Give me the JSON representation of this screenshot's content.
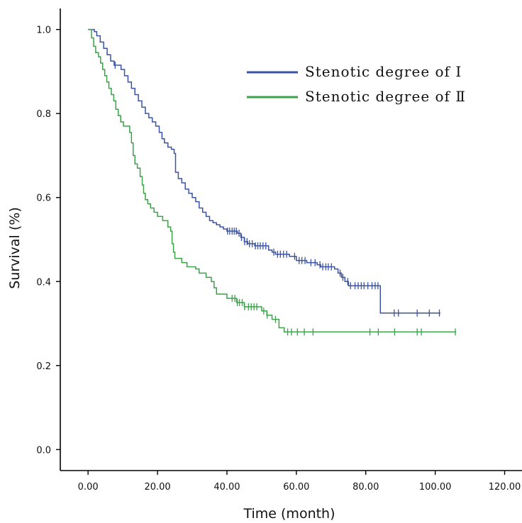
{
  "chart_data": {
    "type": "line",
    "subtype": "kaplan-meier-step",
    "title": "",
    "xlabel": "Time (month)",
    "ylabel": "Survival (%)",
    "xlim": [
      -8,
      125
    ],
    "ylim": [
      -0.05,
      1.05
    ],
    "xticks": [
      0,
      20,
      40,
      60,
      80,
      100,
      120
    ],
    "xtick_labels": [
      "0.00",
      "20.00",
      "40.00",
      "60.00",
      "80.00",
      "100.00",
      "120.00"
    ],
    "yticks": [
      0,
      0.2,
      0.4,
      0.6,
      0.8,
      1.0
    ],
    "ytick_labels": [
      "0.0",
      "0.2",
      "0.4",
      "0.6",
      "0.8",
      "1.0"
    ],
    "grid": false,
    "legend_position": "top-right",
    "series": [
      {
        "name": "Stenotic degree of Ⅰ",
        "color": "#3a53a4",
        "steps": [
          [
            0,
            1.0
          ],
          [
            1.8,
            0.995
          ],
          [
            2.5,
            0.985
          ],
          [
            3.5,
            0.97
          ],
          [
            4.5,
            0.955
          ],
          [
            5.5,
            0.94
          ],
          [
            6.5,
            0.925
          ],
          [
            7.5,
            0.915
          ],
          [
            9.5,
            0.905
          ],
          [
            10.5,
            0.89
          ],
          [
            11.5,
            0.875
          ],
          [
            12.5,
            0.86
          ],
          [
            13.5,
            0.845
          ],
          [
            14.5,
            0.83
          ],
          [
            15.5,
            0.815
          ],
          [
            16.5,
            0.8
          ],
          [
            17.5,
            0.79
          ],
          [
            18.5,
            0.78
          ],
          [
            19.5,
            0.77
          ],
          [
            20.5,
            0.755
          ],
          [
            21.3,
            0.74
          ],
          [
            22,
            0.73
          ],
          [
            23,
            0.72
          ],
          [
            24,
            0.715
          ],
          [
            24.8,
            0.705
          ],
          [
            25.2,
            0.66
          ],
          [
            26,
            0.645
          ],
          [
            27,
            0.635
          ],
          [
            28,
            0.62
          ],
          [
            29,
            0.61
          ],
          [
            30,
            0.6
          ],
          [
            31,
            0.59
          ],
          [
            32,
            0.575
          ],
          [
            33,
            0.565
          ],
          [
            34,
            0.555
          ],
          [
            35,
            0.545
          ],
          [
            36,
            0.54
          ],
          [
            37,
            0.535
          ],
          [
            38,
            0.53
          ],
          [
            39,
            0.525
          ],
          [
            40,
            0.52
          ],
          [
            43,
            0.515
          ],
          [
            44,
            0.505
          ],
          [
            45,
            0.495
          ],
          [
            46,
            0.49
          ],
          [
            48,
            0.485
          ],
          [
            52,
            0.475
          ],
          [
            53,
            0.47
          ],
          [
            54,
            0.465
          ],
          [
            58,
            0.46
          ],
          [
            60,
            0.45
          ],
          [
            63,
            0.445
          ],
          [
            66,
            0.44
          ],
          [
            67,
            0.435
          ],
          [
            71,
            0.43
          ],
          [
            72,
            0.42
          ],
          [
            73,
            0.41
          ],
          [
            74,
            0.4
          ],
          [
            75,
            0.39
          ],
          [
            84.2,
            0.325
          ],
          [
            101.5,
            0.325
          ]
        ],
        "censors": [
          7.8,
          40.2,
          40.8,
          41.5,
          42.1,
          42.7,
          43.5,
          44.2,
          45.1,
          45.8,
          46.5,
          47.3,
          48.2,
          48.9,
          49.6,
          50.4,
          51.2,
          53.5,
          54.6,
          55.4,
          56.3,
          57.2,
          59.5,
          60.8,
          61.6,
          62.5,
          64.2,
          65.4,
          66.8,
          67.6,
          68.5,
          69.2,
          70.1,
          72.6,
          73.4,
          74.8,
          75.6,
          76.9,
          77.8,
          78.7,
          79.5,
          80.6,
          81.8,
          82.7,
          83.5,
          88.2,
          89.4,
          94.8,
          98.3,
          101.2
        ]
      },
      {
        "name": "Stenotic degree of Ⅱ",
        "color": "#3ca14a",
        "steps": [
          [
            0,
            1.0
          ],
          [
            1,
            0.98
          ],
          [
            1.6,
            0.96
          ],
          [
            2.2,
            0.945
          ],
          [
            3,
            0.935
          ],
          [
            3.6,
            0.92
          ],
          [
            4.2,
            0.905
          ],
          [
            4.8,
            0.89
          ],
          [
            5.4,
            0.875
          ],
          [
            6,
            0.86
          ],
          [
            6.7,
            0.845
          ],
          [
            7.4,
            0.83
          ],
          [
            8,
            0.81
          ],
          [
            8.7,
            0.795
          ],
          [
            9.4,
            0.78
          ],
          [
            10.2,
            0.77
          ],
          [
            12,
            0.755
          ],
          [
            12.5,
            0.73
          ],
          [
            13,
            0.7
          ],
          [
            13.5,
            0.68
          ],
          [
            14.2,
            0.67
          ],
          [
            15,
            0.65
          ],
          [
            15.6,
            0.63
          ],
          [
            16,
            0.61
          ],
          [
            16.5,
            0.595
          ],
          [
            17.2,
            0.585
          ],
          [
            18,
            0.575
          ],
          [
            19,
            0.565
          ],
          [
            20,
            0.555
          ],
          [
            21.5,
            0.545
          ],
          [
            23,
            0.53
          ],
          [
            23.8,
            0.52
          ],
          [
            24.2,
            0.49
          ],
          [
            24.6,
            0.47
          ],
          [
            25,
            0.455
          ],
          [
            27,
            0.445
          ],
          [
            28.5,
            0.435
          ],
          [
            31,
            0.43
          ],
          [
            32,
            0.42
          ],
          [
            34,
            0.41
          ],
          [
            35.5,
            0.4
          ],
          [
            36.3,
            0.385
          ],
          [
            37,
            0.37
          ],
          [
            40,
            0.36
          ],
          [
            42.8,
            0.35
          ],
          [
            45,
            0.34
          ],
          [
            50,
            0.33
          ],
          [
            51.5,
            0.32
          ],
          [
            53,
            0.31
          ],
          [
            55,
            0.29
          ],
          [
            56.5,
            0.28
          ],
          [
            106,
            0.28
          ]
        ],
        "censors": [
          41.5,
          42.3,
          43,
          43.6,
          44.4,
          45.1,
          46.2,
          47,
          47.8,
          48.6,
          50.6,
          51.6,
          54,
          57.5,
          58.6,
          60.3,
          62.3,
          64.8,
          81.2,
          83.6,
          88.3,
          94.8,
          96,
          105.8
        ]
      }
    ]
  }
}
